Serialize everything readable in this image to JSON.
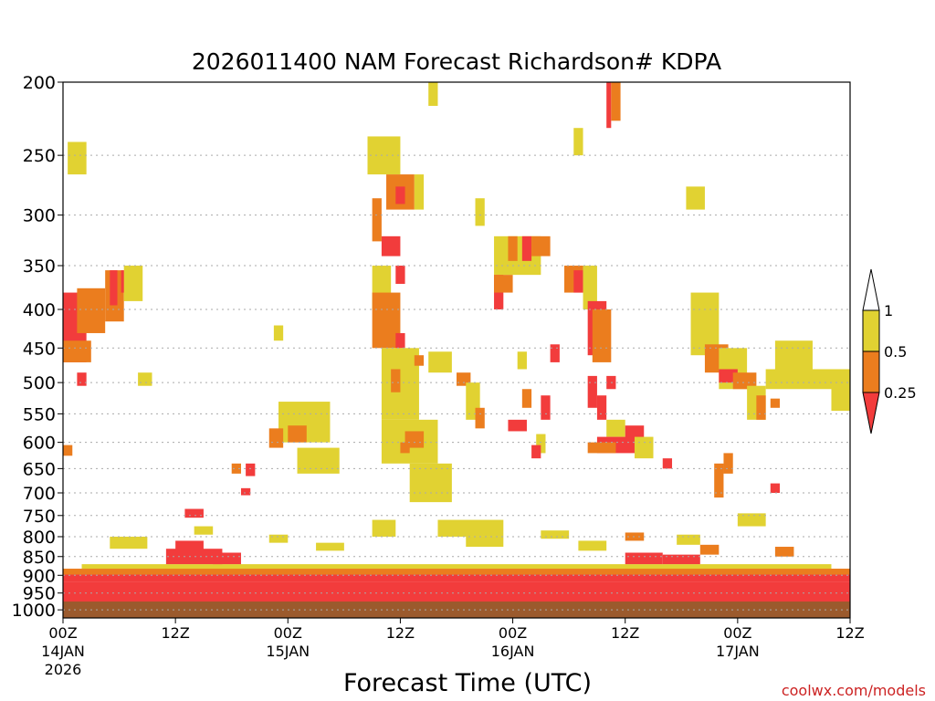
{
  "chart_data": {
    "type": "heatmap",
    "title": "2026011400 NAM Forecast Richardson# KDPA",
    "xlabel": "Forecast Time (UTC)",
    "ylabel": "",
    "credit": "coolwx.com/models",
    "x_unit": "forecast hour",
    "xlim": [
      0,
      84
    ],
    "y_scale": "log",
    "ylim": [
      1025,
      200
    ],
    "x_ticks": [
      {
        "x": 0,
        "label": "00Z",
        "sub": "14JAN",
        "sub2": "2026"
      },
      {
        "x": 12,
        "label": "12Z",
        "sub": "",
        "sub2": ""
      },
      {
        "x": 24,
        "label": "00Z",
        "sub": "15JAN",
        "sub2": ""
      },
      {
        "x": 36,
        "label": "12Z",
        "sub": "",
        "sub2": ""
      },
      {
        "x": 48,
        "label": "00Z",
        "sub": "16JAN",
        "sub2": ""
      },
      {
        "x": 60,
        "label": "12Z",
        "sub": "",
        "sub2": ""
      },
      {
        "x": 72,
        "label": "00Z",
        "sub": "17JAN",
        "sub2": ""
      },
      {
        "x": 84,
        "label": "12Z",
        "sub": "",
        "sub2": ""
      }
    ],
    "y_ticks": [
      200,
      250,
      300,
      350,
      400,
      450,
      500,
      550,
      600,
      650,
      700,
      750,
      800,
      850,
      900,
      950,
      1000
    ],
    "grid": "dotted horizontal at labeled pressure levels",
    "legend": {
      "position": "right",
      "labels": [
        "1",
        "0.5",
        "0.25"
      ],
      "classes": [
        {
          "name": "lt_0.25",
          "color": "#f23c3c"
        },
        {
          "name": "0.25_0.5",
          "color": "#eb7d1e"
        },
        {
          "name": "0.5_1",
          "color": "#e1d232"
        },
        {
          "name": "gt_1",
          "color": "#ffffff"
        }
      ]
    },
    "ground": {
      "color": "#9b5a2d",
      "from_pressure": 970
    },
    "bands": [
      {
        "class": "lt_0.25",
        "x": [
          0,
          84
        ],
        "p_bot": 975,
        "p_top": 918
      },
      {
        "class": "lt_0.25",
        "x": [
          0,
          84
        ],
        "p_bot": 918,
        "p_top": 898
      },
      {
        "class": "0.25_0.5",
        "x": [
          0,
          84
        ],
        "p_bot": 898,
        "p_top": 882
      },
      {
        "class": "0.5_1",
        "x": [
          2,
          82
        ],
        "p_bot": 882,
        "p_top": 870
      }
    ],
    "cells": [
      {
        "x": 0,
        "x2": 2.5,
        "p": 380,
        "p2": 470,
        "class": "lt_0.25"
      },
      {
        "x": 0,
        "x2": 3,
        "p": 440,
        "p2": 470,
        "class": "0.25_0.5"
      },
      {
        "x": 1.5,
        "x2": 4.5,
        "p": 375,
        "p2": 430,
        "class": "0.25_0.5"
      },
      {
        "x": 0.5,
        "x2": 2.5,
        "p": 240,
        "p2": 265,
        "class": "0.5_1"
      },
      {
        "x": 4.5,
        "x2": 6.5,
        "p": 355,
        "p2": 415,
        "class": "0.25_0.5"
      },
      {
        "x": 5,
        "x2": 5.8,
        "p": 355,
        "p2": 395,
        "class": "lt_0.25"
      },
      {
        "x": 6.2,
        "x2": 7,
        "p": 355,
        "p2": 380,
        "class": "lt_0.25"
      },
      {
        "x": 6.5,
        "x2": 8.5,
        "p": 350,
        "p2": 390,
        "class": "0.5_1"
      },
      {
        "x": 1.5,
        "x2": 2.5,
        "p": 485,
        "p2": 505,
        "class": "lt_0.25"
      },
      {
        "x": 8,
        "x2": 9.5,
        "p": 485,
        "p2": 505,
        "class": "0.5_1"
      },
      {
        "x": 0,
        "x2": 1,
        "p": 605,
        "p2": 625,
        "class": "0.25_0.5"
      },
      {
        "x": 18,
        "x2": 19,
        "p": 640,
        "p2": 660,
        "class": "0.25_0.5"
      },
      {
        "x": 19.5,
        "x2": 20.5,
        "p": 640,
        "p2": 665,
        "class": "lt_0.25"
      },
      {
        "x": 19,
        "x2": 20,
        "p": 690,
        "p2": 705,
        "class": "lt_0.25"
      },
      {
        "x": 22.5,
        "x2": 23.5,
        "p": 420,
        "p2": 440,
        "class": "0.5_1"
      },
      {
        "x": 23,
        "x2": 28.5,
        "p": 530,
        "p2": 600,
        "class": "0.5_1"
      },
      {
        "x": 22,
        "x2": 23.5,
        "p": 575,
        "p2": 610,
        "class": "0.25_0.5"
      },
      {
        "x": 24,
        "x2": 26,
        "p": 570,
        "p2": 600,
        "class": "0.25_0.5"
      },
      {
        "x": 25,
        "x2": 29.5,
        "p": 610,
        "p2": 660,
        "class": "0.5_1"
      },
      {
        "x": 32.5,
        "x2": 36,
        "p": 236,
        "p2": 265,
        "class": "0.5_1"
      },
      {
        "x": 34.5,
        "x2": 37.5,
        "p": 265,
        "p2": 295,
        "class": "0.25_0.5"
      },
      {
        "x": 35.5,
        "x2": 36.5,
        "p": 275,
        "p2": 290,
        "class": "lt_0.25"
      },
      {
        "x": 37.5,
        "x2": 38.5,
        "p": 265,
        "p2": 295,
        "class": "0.5_1"
      },
      {
        "x": 33,
        "x2": 34,
        "p": 285,
        "p2": 325,
        "class": "0.25_0.5"
      },
      {
        "x": 34,
        "x2": 36,
        "p": 320,
        "p2": 340,
        "class": "lt_0.25"
      },
      {
        "x": 35.5,
        "x2": 36.5,
        "p": 350,
        "p2": 370,
        "class": "lt_0.25"
      },
      {
        "x": 33,
        "x2": 35,
        "p": 350,
        "p2": 400,
        "class": "0.5_1"
      },
      {
        "x": 33,
        "x2": 36,
        "p": 380,
        "p2": 450,
        "class": "0.25_0.5"
      },
      {
        "x": 35.5,
        "x2": 36.5,
        "p": 430,
        "p2": 450,
        "class": "lt_0.25"
      },
      {
        "x": 34,
        "x2": 38,
        "p": 450,
        "p2": 560,
        "class": "0.5_1"
      },
      {
        "x": 35,
        "x2": 36,
        "p": 480,
        "p2": 515,
        "class": "0.25_0.5"
      },
      {
        "x": 37.5,
        "x2": 38.5,
        "p": 460,
        "p2": 475,
        "class": "0.25_0.5"
      },
      {
        "x": 39,
        "x2": 41.5,
        "p": 455,
        "p2": 485,
        "class": "0.5_1"
      },
      {
        "x": 34,
        "x2": 40,
        "p": 560,
        "p2": 640,
        "class": "0.5_1"
      },
      {
        "x": 36.5,
        "x2": 38.5,
        "p": 580,
        "p2": 610,
        "class": "0.25_0.5"
      },
      {
        "x": 37,
        "x2": 41.5,
        "p": 640,
        "p2": 720,
        "class": "0.5_1"
      },
      {
        "x": 36,
        "x2": 37,
        "p": 600,
        "p2": 620,
        "class": "0.25_0.5"
      },
      {
        "x": 42,
        "x2": 43.5,
        "p": 485,
        "p2": 505,
        "class": "0.25_0.5"
      },
      {
        "x": 43,
        "x2": 44.5,
        "p": 500,
        "p2": 560,
        "class": "0.5_1"
      },
      {
        "x": 44,
        "x2": 45,
        "p": 540,
        "p2": 575,
        "class": "0.25_0.5"
      },
      {
        "x": 40,
        "x2": 47,
        "p": 760,
        "p2": 800,
        "class": "0.5_1"
      },
      {
        "x": 33,
        "x2": 35.5,
        "p": 760,
        "p2": 800,
        "class": "0.5_1"
      },
      {
        "x": 46,
        "x2": 51,
        "p": 320,
        "p2": 360,
        "class": "0.5_1"
      },
      {
        "x": 47.5,
        "x2": 48.5,
        "p": 320,
        "p2": 345,
        "class": "0.25_0.5"
      },
      {
        "x": 49,
        "x2": 50,
        "p": 320,
        "p2": 345,
        "class": "lt_0.25"
      },
      {
        "x": 50,
        "x2": 52,
        "p": 320,
        "p2": 340,
        "class": "0.25_0.5"
      },
      {
        "x": 46,
        "x2": 47,
        "p": 360,
        "p2": 400,
        "class": "lt_0.25"
      },
      {
        "x": 46,
        "x2": 48,
        "p": 360,
        "p2": 380,
        "class": "0.25_0.5"
      },
      {
        "x": 48.5,
        "x2": 49.5,
        "p": 455,
        "p2": 480,
        "class": "0.5_1"
      },
      {
        "x": 49,
        "x2": 50,
        "p": 510,
        "p2": 540,
        "class": "0.25_0.5"
      },
      {
        "x": 47.5,
        "x2": 49.5,
        "p": 560,
        "p2": 580,
        "class": "lt_0.25"
      },
      {
        "x": 50.5,
        "x2": 51.5,
        "p": 585,
        "p2": 620,
        "class": "0.5_1"
      },
      {
        "x": 52,
        "x2": 53,
        "p": 445,
        "p2": 470,
        "class": "lt_0.25"
      },
      {
        "x": 51,
        "x2": 52,
        "p": 520,
        "p2": 560,
        "class": "lt_0.25"
      },
      {
        "x": 50,
        "x2": 51,
        "p": 605,
        "p2": 630,
        "class": "lt_0.25"
      },
      {
        "x": 53.5,
        "x2": 55.5,
        "p": 350,
        "p2": 380,
        "class": "0.25_0.5"
      },
      {
        "x": 54.5,
        "x2": 55.5,
        "p": 355,
        "p2": 380,
        "class": "lt_0.25"
      },
      {
        "x": 55.5,
        "x2": 57,
        "p": 350,
        "p2": 400,
        "class": "0.5_1"
      },
      {
        "x": 56,
        "x2": 58,
        "p": 390,
        "p2": 460,
        "class": "lt_0.25"
      },
      {
        "x": 56.5,
        "x2": 58.5,
        "p": 400,
        "p2": 470,
        "class": "0.25_0.5"
      },
      {
        "x": 58,
        "x2": 59,
        "p": 490,
        "p2": 510,
        "class": "lt_0.25"
      },
      {
        "x": 56,
        "x2": 57,
        "p": 490,
        "p2": 540,
        "class": "lt_0.25"
      },
      {
        "x": 57,
        "x2": 58,
        "p": 520,
        "p2": 560,
        "class": "lt_0.25"
      },
      {
        "x": 58,
        "x2": 60,
        "p": 560,
        "p2": 590,
        "class": "0.5_1"
      },
      {
        "x": 57,
        "x2": 61,
        "p": 590,
        "p2": 620,
        "class": "lt_0.25"
      },
      {
        "x": 60,
        "x2": 62,
        "p": 570,
        "p2": 600,
        "class": "lt_0.25"
      },
      {
        "x": 56,
        "x2": 59,
        "p": 600,
        "p2": 620,
        "class": "0.25_0.5"
      },
      {
        "x": 61,
        "x2": 63,
        "p": 590,
        "p2": 630,
        "class": "0.5_1"
      },
      {
        "x": 66.5,
        "x2": 68.5,
        "p": 275,
        "p2": 295,
        "class": "0.5_1"
      },
      {
        "x": 67,
        "x2": 70,
        "p": 380,
        "p2": 460,
        "class": "0.5_1"
      },
      {
        "x": 68.5,
        "x2": 71,
        "p": 445,
        "p2": 485,
        "class": "0.25_0.5"
      },
      {
        "x": 70,
        "x2": 73,
        "p": 450,
        "p2": 510,
        "class": "0.5_1"
      },
      {
        "x": 70,
        "x2": 72,
        "p": 480,
        "p2": 500,
        "class": "lt_0.25"
      },
      {
        "x": 71.5,
        "x2": 74,
        "p": 485,
        "p2": 510,
        "class": "0.25_0.5"
      },
      {
        "x": 73,
        "x2": 75,
        "p": 505,
        "p2": 560,
        "class": "0.5_1"
      },
      {
        "x": 74,
        "x2": 75,
        "p": 520,
        "p2": 560,
        "class": "0.25_0.5"
      },
      {
        "x": 76,
        "x2": 80,
        "p": 440,
        "p2": 500,
        "class": "0.5_1"
      },
      {
        "x": 75,
        "x2": 85,
        "p": 480,
        "p2": 510,
        "class": "0.5_1"
      },
      {
        "x": 82,
        "x2": 84,
        "p": 500,
        "p2": 545,
        "class": "0.5_1"
      },
      {
        "x": 75.5,
        "x2": 76.5,
        "p": 525,
        "p2": 540,
        "class": "0.25_0.5"
      },
      {
        "x": 72,
        "x2": 75,
        "p": 745,
        "p2": 775,
        "class": "0.5_1"
      },
      {
        "x": 65.5,
        "x2": 68,
        "p": 795,
        "p2": 820,
        "class": "0.5_1"
      },
      {
        "x": 75.5,
        "x2": 76.5,
        "p": 680,
        "p2": 700,
        "class": "lt_0.25"
      },
      {
        "x": 69.5,
        "x2": 70.5,
        "p": 640,
        "p2": 710,
        "class": "0.25_0.5"
      },
      {
        "x": 70.5,
        "x2": 71.5,
        "p": 620,
        "p2": 660,
        "class": "0.25_0.5"
      },
      {
        "x": 64,
        "x2": 65,
        "p": 630,
        "p2": 650,
        "class": "lt_0.25"
      },
      {
        "x": 58,
        "x2": 58.5,
        "p": 200,
        "p2": 230,
        "class": "lt_0.25"
      },
      {
        "x": 58.5,
        "x2": 59.5,
        "p": 200,
        "p2": 225,
        "class": "0.25_0.5"
      },
      {
        "x": 39,
        "x2": 40,
        "p": 200,
        "p2": 215,
        "class": "0.5_1"
      },
      {
        "x": 54.5,
        "x2": 55.5,
        "p": 230,
        "p2": 250,
        "class": "0.5_1"
      },
      {
        "x": 44,
        "x2": 45,
        "p": 285,
        "p2": 310,
        "class": "0.5_1"
      },
      {
        "x": 13,
        "x2": 15,
        "p": 735,
        "p2": 755,
        "class": "lt_0.25"
      },
      {
        "x": 12,
        "x2": 15,
        "p": 810,
        "p2": 860,
        "class": "lt_0.25"
      },
      {
        "x": 11,
        "x2": 17,
        "p": 830,
        "p2": 870,
        "class": "lt_0.25"
      },
      {
        "x": 16,
        "x2": 19,
        "p": 840,
        "p2": 870,
        "class": "lt_0.25"
      },
      {
        "x": 60,
        "x2": 64,
        "p": 840,
        "p2": 870,
        "class": "lt_0.25"
      },
      {
        "x": 64,
        "x2": 68,
        "p": 845,
        "p2": 870,
        "class": "lt_0.25"
      },
      {
        "x": 5,
        "x2": 9,
        "p": 800,
        "p2": 830,
        "class": "0.5_1"
      },
      {
        "x": 14,
        "x2": 16,
        "p": 775,
        "p2": 795,
        "class": "0.5_1"
      },
      {
        "x": 22,
        "x2": 24,
        "p": 795,
        "p2": 815,
        "class": "0.5_1"
      },
      {
        "x": 27,
        "x2": 30,
        "p": 815,
        "p2": 835,
        "class": "0.5_1"
      },
      {
        "x": 43,
        "x2": 47,
        "p": 800,
        "p2": 825,
        "class": "0.5_1"
      },
      {
        "x": 51,
        "x2": 54,
        "p": 785,
        "p2": 805,
        "class": "0.5_1"
      },
      {
        "x": 55,
        "x2": 58,
        "p": 810,
        "p2": 835,
        "class": "0.5_1"
      },
      {
        "x": 60,
        "x2": 62,
        "p": 790,
        "p2": 810,
        "class": "0.25_0.5"
      },
      {
        "x": 68,
        "x2": 70,
        "p": 820,
        "p2": 845,
        "class": "0.25_0.5"
      },
      {
        "x": 76,
        "x2": 78,
        "p": 825,
        "p2": 850,
        "class": "0.25_0.5"
      }
    ]
  }
}
